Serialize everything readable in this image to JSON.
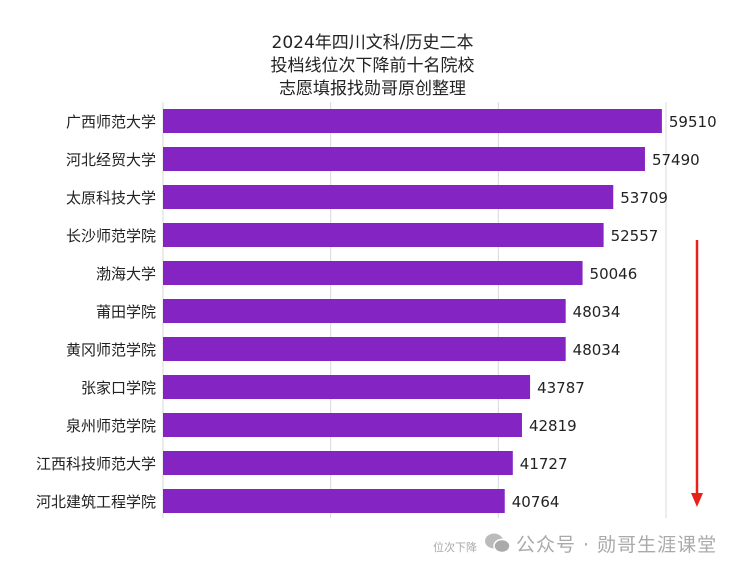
{
  "chart_data": {
    "type": "bar",
    "orientation": "horizontal",
    "title": [
      "2024年四川文科/历史二本",
      "投档线位次下降前十名院校",
      "志愿填报找勋哥原创整理"
    ],
    "categories": [
      "广西师范大学",
      "河北经贸大学",
      "太原科技大学",
      "长沙师范学院",
      "渤海大学",
      "莆田学院",
      "黄冈师范学院",
      "张家口学院",
      "泉州师范学院",
      "江西科技师范大学",
      "河北建筑工程学院"
    ],
    "values": [
      59510,
      57490,
      53709,
      52557,
      50046,
      48034,
      48034,
      43787,
      42819,
      41727,
      40764
    ],
    "xlim": [
      0,
      60000
    ],
    "gridlines": [
      0,
      20000,
      40000,
      60000
    ],
    "grid": true,
    "bar_color": "#8424C3",
    "annotation_color": "#E8211B",
    "annotation_label": "位次下降"
  },
  "watermark": {
    "text": "公众号 · 勋哥生涯课堂",
    "icon": "wechat-icon"
  }
}
